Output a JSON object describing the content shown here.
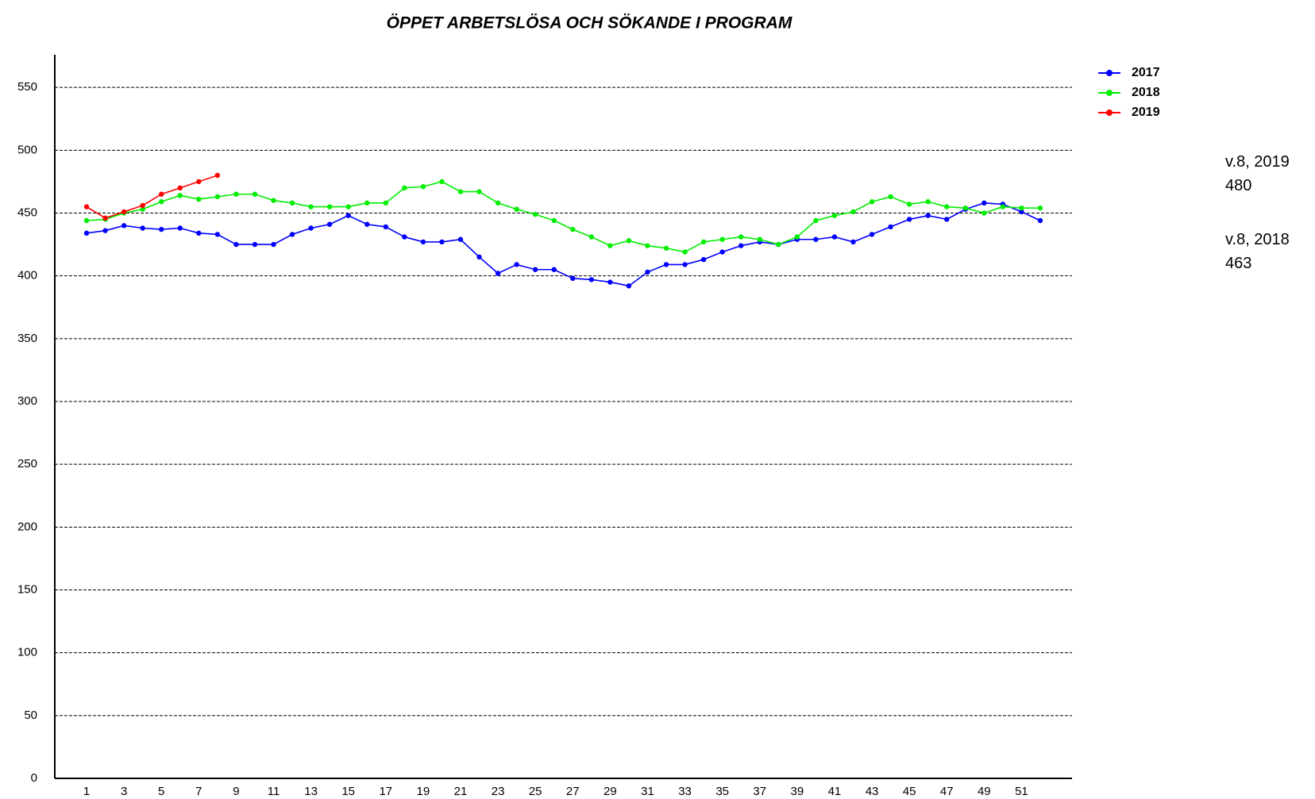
{
  "chart_data": {
    "type": "line",
    "title": "ÖPPET ARBETSLÖSA OCH SÖKANDE I PROGRAM",
    "categories": [
      1,
      null,
      3,
      null,
      5,
      null,
      7,
      null,
      9,
      null,
      11,
      null,
      13,
      null,
      15,
      null,
      17,
      null,
      19,
      null,
      21,
      null,
      23,
      null,
      25,
      null,
      27,
      null,
      29,
      null,
      31,
      null,
      33,
      null,
      35,
      null,
      37,
      null,
      39,
      null,
      41,
      null,
      43,
      null,
      45,
      null,
      47,
      null,
      49,
      null,
      51,
      null
    ],
    "series": [
      {
        "name": "2017",
        "color": "#0000ff",
        "values": [
          434,
          436,
          440,
          438,
          437,
          438,
          434,
          433,
          425,
          425,
          425,
          433,
          438,
          441,
          448,
          441,
          439,
          431,
          427,
          427,
          429,
          415,
          402,
          409,
          405,
          405,
          398,
          397,
          395,
          392,
          403,
          409,
          409,
          413,
          419,
          424,
          427,
          425,
          429,
          429,
          431,
          427,
          433,
          439,
          445,
          448,
          445,
          453,
          458,
          457,
          451,
          444
        ]
      },
      {
        "name": "2018",
        "color": "#00ee00",
        "values": [
          444,
          445,
          450,
          453,
          459,
          464,
          461,
          463,
          465,
          465,
          460,
          458,
          455,
          455,
          455,
          458,
          458,
          470,
          471,
          475,
          467,
          467,
          458,
          453,
          449,
          444,
          437,
          431,
          424,
          428,
          424,
          422,
          419,
          427,
          429,
          431,
          429,
          425,
          431,
          444,
          448,
          451,
          459,
          463,
          457,
          459,
          455,
          454,
          450,
          455,
          454,
          454
        ]
      },
      {
        "name": "2019",
        "color": "#ff0000",
        "values": [
          455,
          446,
          451,
          456,
          465,
          470,
          475,
          480,
          null,
          null,
          null,
          null,
          null,
          null,
          null,
          null,
          null,
          null,
          null,
          null,
          null,
          null,
          null,
          null,
          null,
          null,
          null,
          null,
          null,
          null,
          null,
          null,
          null,
          null,
          null,
          null,
          null,
          null,
          null,
          null,
          null,
          null,
          null,
          null,
          null,
          null,
          null,
          null,
          null,
          null,
          null,
          null
        ]
      }
    ],
    "ylim": [
      0,
      576
    ],
    "yticks": [
      0,
      50,
      100,
      150,
      200,
      250,
      300,
      350,
      400,
      450,
      500,
      550
    ],
    "grid": true,
    "legend": "right",
    "annotations": [
      {
        "label": "v.8, 2019",
        "value": 480
      },
      {
        "label": "v.8, 2018",
        "value": 463
      }
    ]
  }
}
